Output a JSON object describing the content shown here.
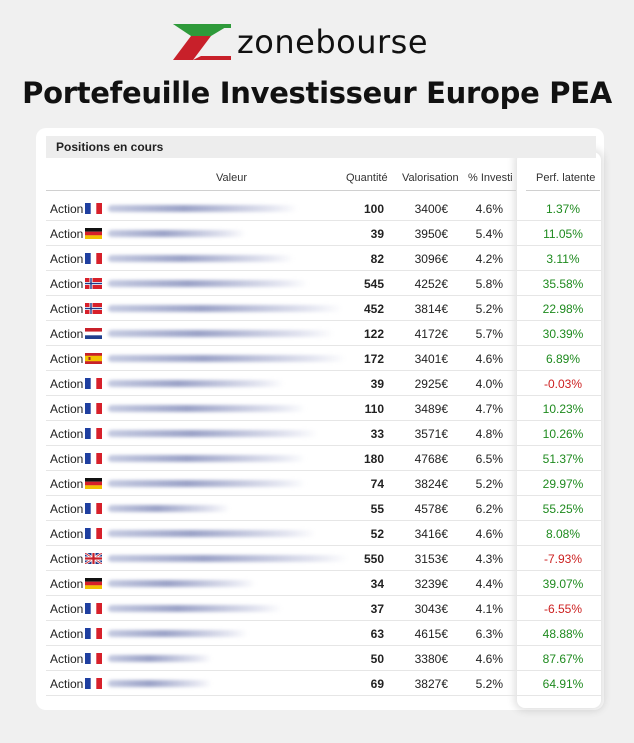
{
  "brand": {
    "name": "zonebourse",
    "logo_colors": {
      "green": "#2e9a3a",
      "red": "#c8202a",
      "dark": "#111111"
    }
  },
  "title": "Portefeuille Investisseur Europe PEA",
  "section": {
    "label": "Positions en cours"
  },
  "columns": {
    "valeur": "Valeur",
    "quantite": "Quantité",
    "valorisation": "Valorisation",
    "pct": "% Investi",
    "perf": "Perf. latente"
  },
  "colors": {
    "positive": "#1e8a1e",
    "negative": "#cc1f1f",
    "header_bg": "#ededed"
  },
  "rows": [
    {
      "type": "Action",
      "flag": "fr",
      "quantity": "100",
      "valuation": "3400€",
      "pct": "4.6%",
      "perf": "1.37%",
      "trend": "pos"
    },
    {
      "type": "Action",
      "flag": "de",
      "quantity": "39",
      "valuation": "3950€",
      "pct": "5.4%",
      "perf": "11.05%",
      "trend": "pos"
    },
    {
      "type": "Action",
      "flag": "fr",
      "quantity": "82",
      "valuation": "3096€",
      "pct": "4.2%",
      "perf": "3.11%",
      "trend": "pos"
    },
    {
      "type": "Action",
      "flag": "no",
      "quantity": "545",
      "valuation": "4252€",
      "pct": "5.8%",
      "perf": "35.58%",
      "trend": "pos"
    },
    {
      "type": "Action",
      "flag": "no",
      "quantity": "452",
      "valuation": "3814€",
      "pct": "5.2%",
      "perf": "22.98%",
      "trend": "pos"
    },
    {
      "type": "Action",
      "flag": "nl",
      "quantity": "122",
      "valuation": "4172€",
      "pct": "5.7%",
      "perf": "30.39%",
      "trend": "pos"
    },
    {
      "type": "Action",
      "flag": "es",
      "quantity": "172",
      "valuation": "3401€",
      "pct": "4.6%",
      "perf": "6.89%",
      "trend": "pos"
    },
    {
      "type": "Action",
      "flag": "fr",
      "quantity": "39",
      "valuation": "2925€",
      "pct": "4.0%",
      "perf": "-0.03%",
      "trend": "neg"
    },
    {
      "type": "Action",
      "flag": "fr",
      "quantity": "110",
      "valuation": "3489€",
      "pct": "4.7%",
      "perf": "10.23%",
      "trend": "pos"
    },
    {
      "type": "Action",
      "flag": "fr",
      "quantity": "33",
      "valuation": "3571€",
      "pct": "4.8%",
      "perf": "10.26%",
      "trend": "pos"
    },
    {
      "type": "Action",
      "flag": "fr",
      "quantity": "180",
      "valuation": "4768€",
      "pct": "6.5%",
      "perf": "51.37%",
      "trend": "pos"
    },
    {
      "type": "Action",
      "flag": "de",
      "quantity": "74",
      "valuation": "3824€",
      "pct": "5.2%",
      "perf": "29.97%",
      "trend": "pos"
    },
    {
      "type": "Action",
      "flag": "fr",
      "quantity": "55",
      "valuation": "4578€",
      "pct": "6.2%",
      "perf": "55.25%",
      "trend": "pos"
    },
    {
      "type": "Action",
      "flag": "fr",
      "quantity": "52",
      "valuation": "3416€",
      "pct": "4.6%",
      "perf": "8.08%",
      "trend": "pos"
    },
    {
      "type": "Action",
      "flag": "gb",
      "quantity": "550",
      "valuation": "3153€",
      "pct": "4.3%",
      "perf": "-7.93%",
      "trend": "neg"
    },
    {
      "type": "Action",
      "flag": "de",
      "quantity": "34",
      "valuation": "3239€",
      "pct": "4.4%",
      "perf": "39.07%",
      "trend": "pos"
    },
    {
      "type": "Action",
      "flag": "fr",
      "quantity": "37",
      "valuation": "3043€",
      "pct": "4.1%",
      "perf": "-6.55%",
      "trend": "neg"
    },
    {
      "type": "Action",
      "flag": "fr",
      "quantity": "63",
      "valuation": "4615€",
      "pct": "6.3%",
      "perf": "48.88%",
      "trend": "pos"
    },
    {
      "type": "Action",
      "flag": "fr",
      "quantity": "50",
      "valuation": "3380€",
      "pct": "4.6%",
      "perf": "87.67%",
      "trend": "pos"
    },
    {
      "type": "Action",
      "flag": "fr",
      "quantity": "69",
      "valuation": "3827€",
      "pct": "5.2%",
      "perf": "64.91%",
      "trend": "pos"
    }
  ]
}
